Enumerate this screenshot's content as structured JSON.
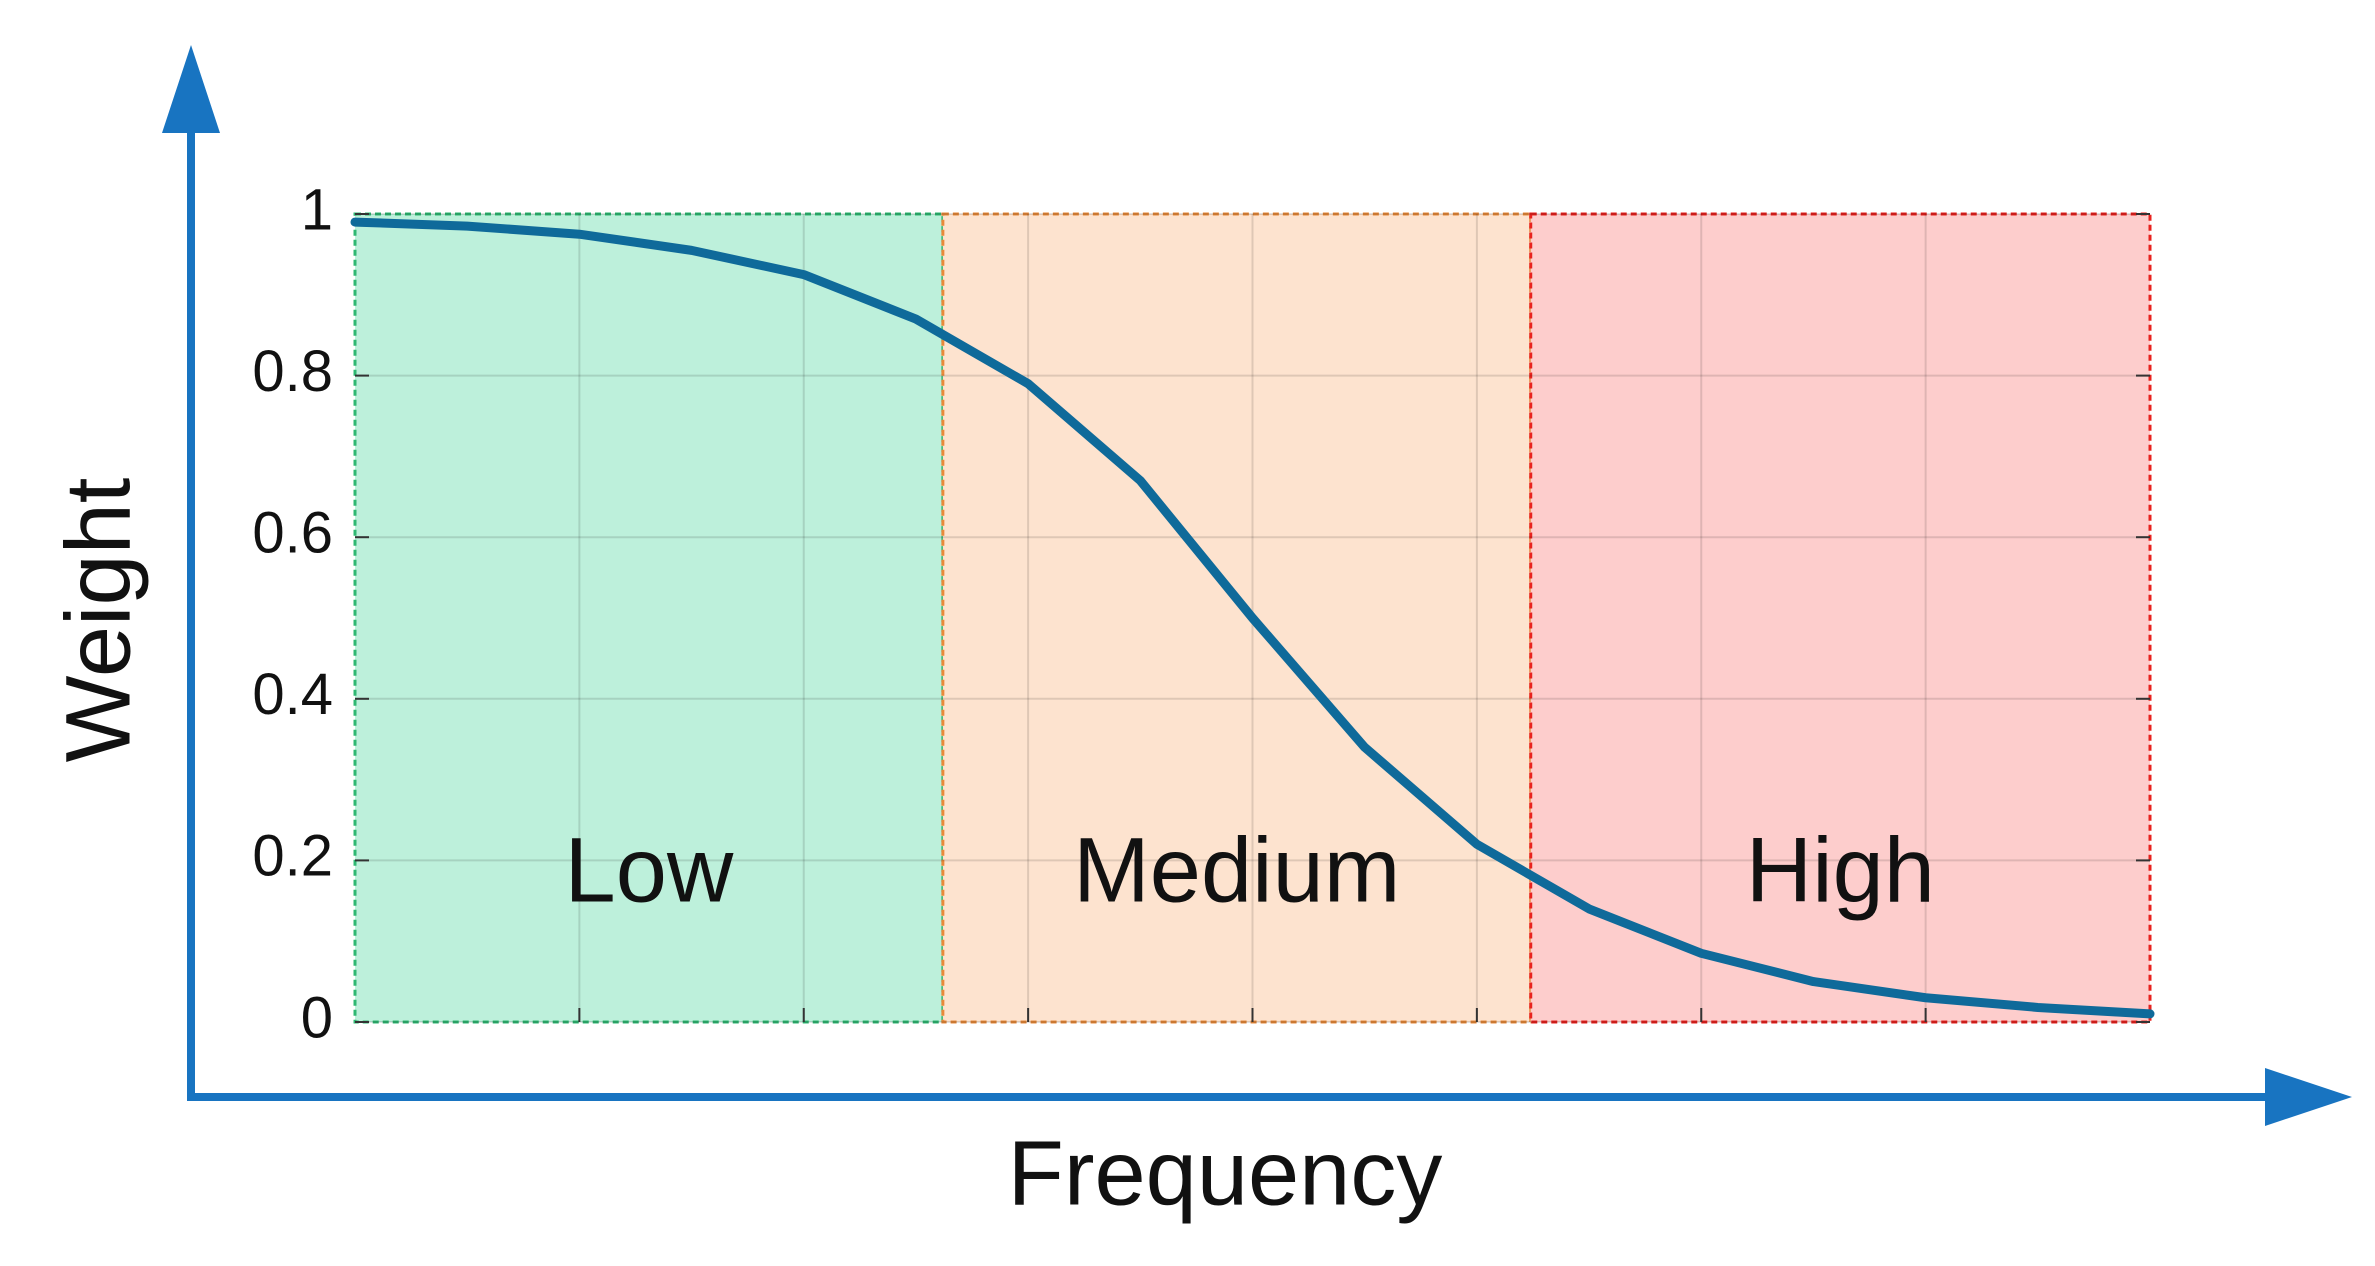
{
  "chart_data": {
    "type": "line",
    "x_label": "Frequency",
    "y_label": "Weight",
    "x": [
      0,
      0.5,
      1,
      1.5,
      2,
      2.5,
      3,
      3.5,
      4,
      4.5,
      5,
      5.5,
      6,
      6.5,
      7,
      7.5,
      8
    ],
    "series": [
      {
        "color": "#0f6a9a",
        "values": [
          0.99,
          0.985,
          0.975,
          0.955,
          0.925,
          0.87,
          0.79,
          0.67,
          0.5,
          0.34,
          0.22,
          0.14,
          0.085,
          0.05,
          0.03,
          0.018,
          0.01
        ]
      }
    ],
    "regions": [
      {
        "label": "Low",
        "start": 0,
        "end": 2.62,
        "fill": "#bdf0db",
        "border": "#2eb872"
      },
      {
        "label": "Medium",
        "start": 2.62,
        "end": 5.24,
        "fill": "#fde3cf",
        "border": "#e8893a"
      },
      {
        "label": "High",
        "start": 5.24,
        "end": 8,
        "fill": "#fdcdcc",
        "border": "#e8221e"
      }
    ],
    "xlim": [
      0,
      8
    ],
    "xticks": [
      1,
      2,
      3,
      4,
      5,
      6,
      7
    ],
    "ylim": [
      0,
      1
    ],
    "yticks": [
      0,
      0.2,
      0.4,
      0.6,
      0.8,
      1
    ],
    "grid": true,
    "axis_color": "#1874c1"
  }
}
